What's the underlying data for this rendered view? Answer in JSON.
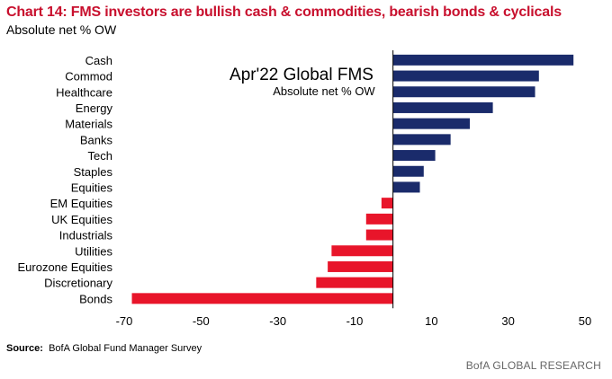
{
  "title": "Chart 14: FMS investors are bullish cash & commodities, bearish bonds & cyclicals",
  "subtitle": "Absolute net % OW",
  "source_label": "Source:",
  "source_text": "BofA Global Fund Manager Survey",
  "brand": "BofA GLOBAL RESEARCH",
  "colors": {
    "positive": "#1a2b6b",
    "negative": "#e8152a",
    "title": "#c8102e"
  },
  "chart_data": {
    "type": "bar",
    "orientation": "horizontal",
    "annotation_title": "Apr'22 Global FMS",
    "annotation_subtitle": "Absolute net % OW",
    "categories": [
      "Cash",
      "Commod",
      "Healthcare",
      "Energy",
      "Materials",
      "Banks",
      "Tech",
      "Staples",
      "Equities",
      "EM Equities",
      "UK Equities",
      "Industrials",
      "Utilities",
      "Eurozone Equities",
      "Discretionary",
      "Bonds"
    ],
    "values": [
      47,
      38,
      37,
      26,
      20,
      15,
      11,
      8,
      7,
      -3,
      -7,
      -7,
      -16,
      -17,
      -20,
      -68
    ],
    "xlim": [
      -70,
      50
    ],
    "xticks": [
      -70,
      -50,
      -30,
      -10,
      10,
      30,
      50
    ],
    "grid": false,
    "legend": "none"
  }
}
